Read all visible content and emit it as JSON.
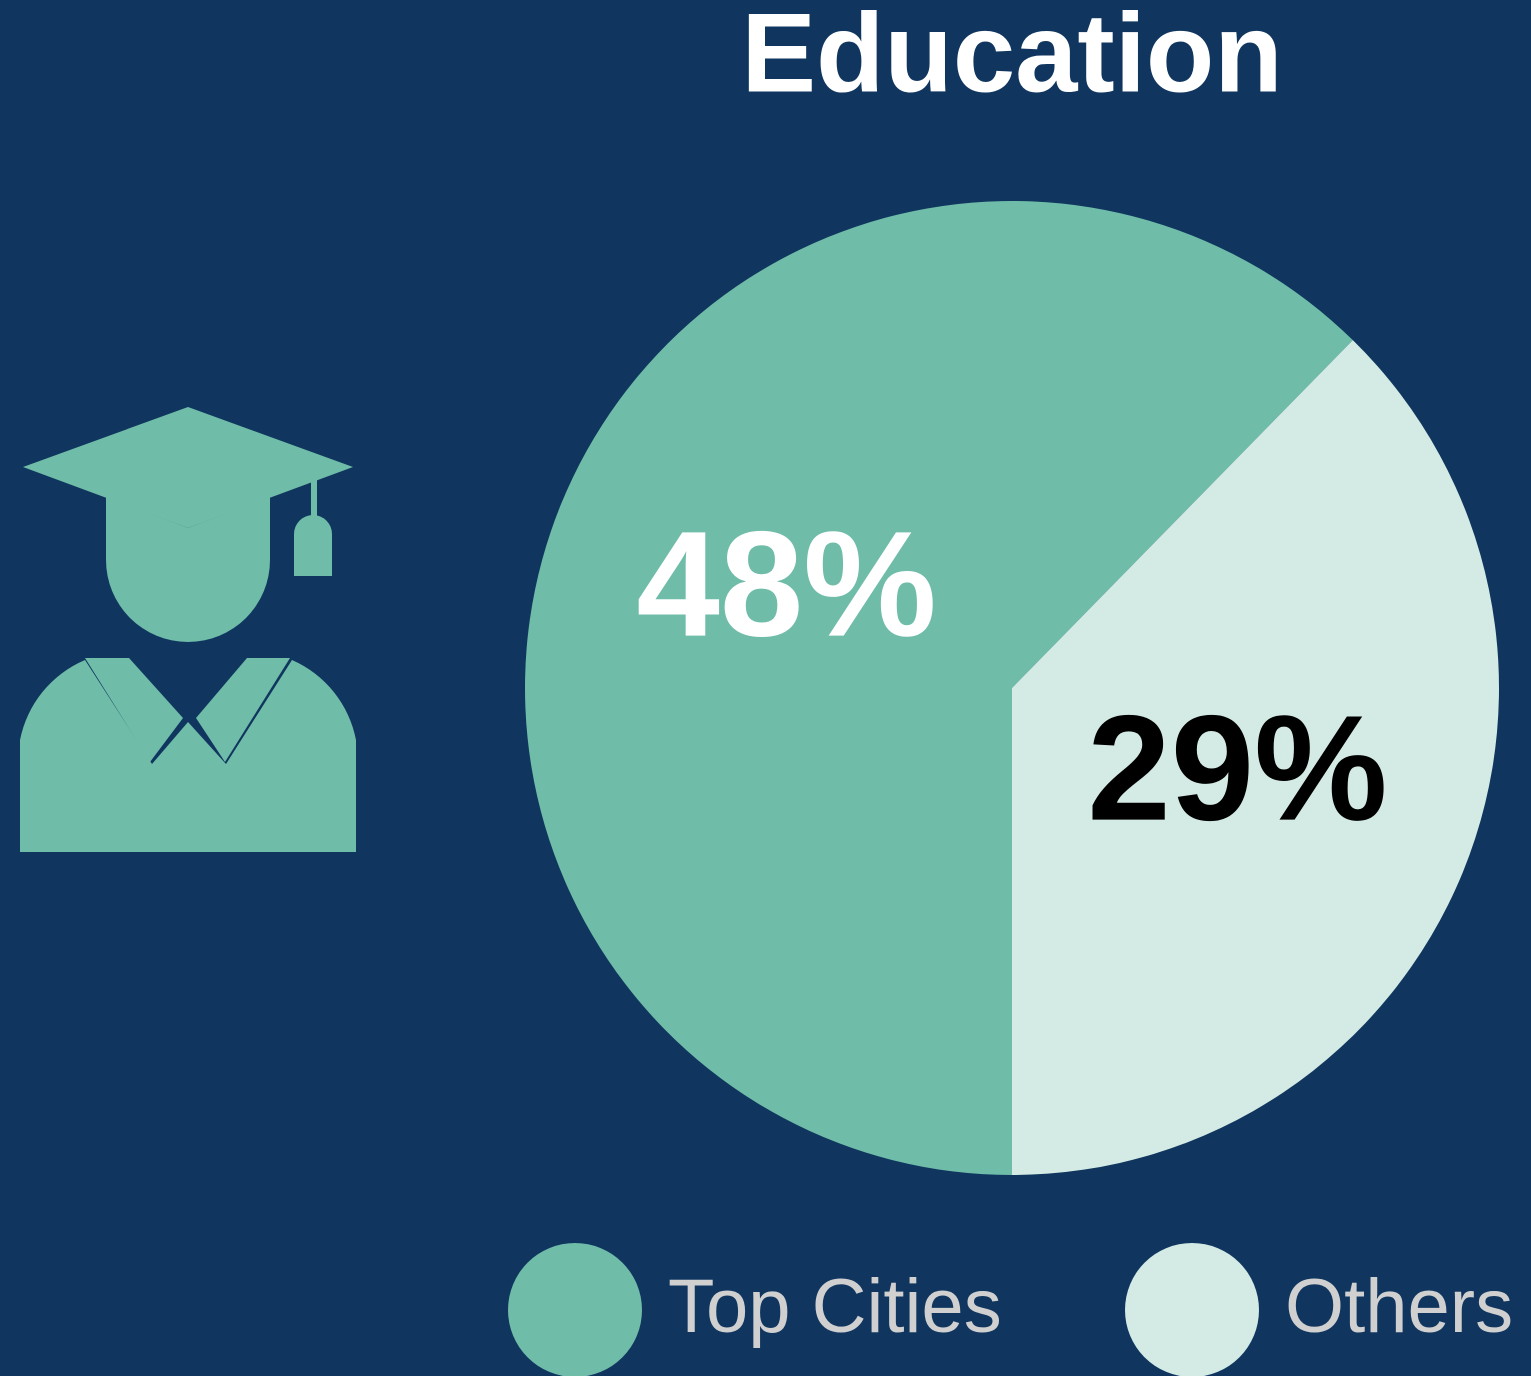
{
  "chart_data": {
    "type": "pie",
    "title": "Education",
    "categories": [
      "Top Cities",
      "Others"
    ],
    "values": [
      48,
      29
    ],
    "value_labels": [
      "48%",
      "29%"
    ],
    "colors": [
      "#6fbca8",
      "#d4ebe5"
    ],
    "label_colors": [
      "#ffffff",
      "#000000"
    ],
    "legend": "bottom"
  }
}
